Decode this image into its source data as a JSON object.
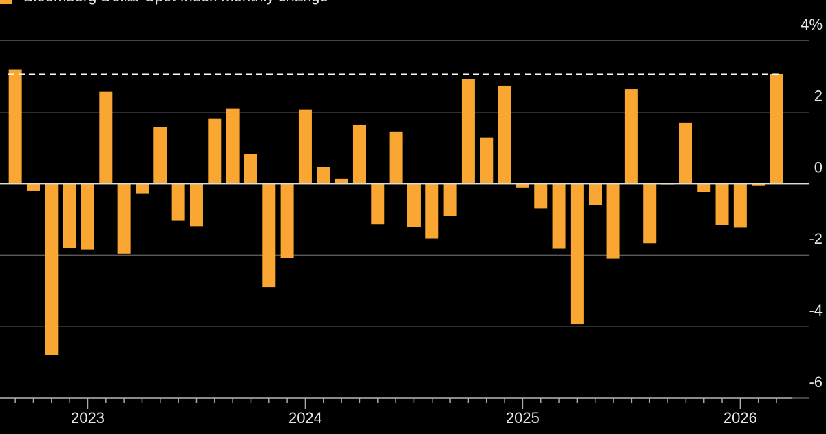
{
  "chart_data": {
    "type": "bar",
    "series": [
      {
        "name": "Bloomberg Dollar Spot Index monthly change",
        "color": "#f9a633",
        "values": [
          3.2,
          -0.2,
          -4.8,
          -1.8,
          -1.85,
          2.58,
          -1.95,
          -0.27,
          1.58,
          -1.04,
          -1.19,
          1.81,
          2.1,
          0.83,
          -2.9,
          -2.08,
          2.08,
          0.46,
          0.13,
          1.65,
          -1.13,
          1.46,
          -1.21,
          -1.54,
          -0.9,
          2.94,
          1.29,
          2.73,
          -0.12,
          -0.69,
          -1.81,
          -3.94,
          -0.6,
          -2.1,
          2.65,
          -1.67,
          -0.02,
          1.71,
          -0.23,
          -1.15,
          -1.23,
          -0.06,
          3.06
        ]
      }
    ],
    "categories": [
      null,
      null,
      null,
      null,
      "2023",
      null,
      null,
      null,
      null,
      null,
      null,
      null,
      null,
      null,
      null,
      null,
      "2024",
      null,
      null,
      null,
      null,
      null,
      null,
      null,
      null,
      null,
      null,
      null,
      "2025",
      null,
      null,
      null,
      null,
      null,
      null,
      null,
      null,
      null,
      null,
      null,
      "2026",
      null,
      null
    ],
    "ylim": [
      -6,
      4
    ],
    "yticks": [
      -6,
      -4,
      -2,
      0,
      2,
      {
        "value": 4,
        "label": "4%"
      }
    ],
    "grid": true
  }
}
